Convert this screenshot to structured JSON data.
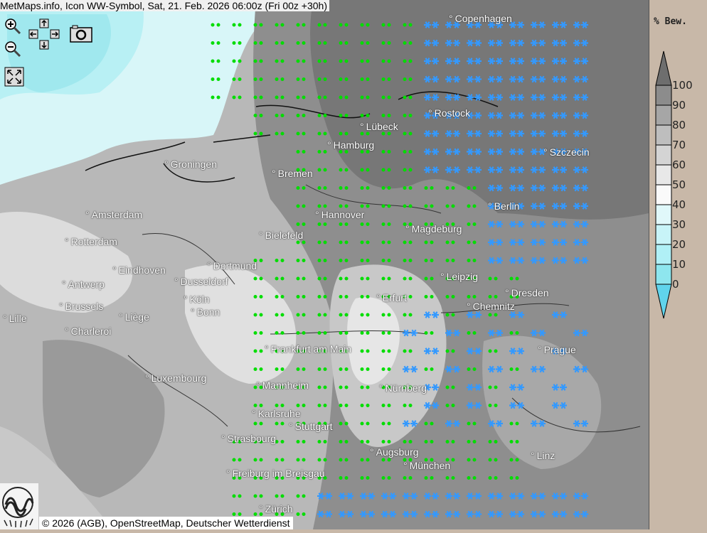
{
  "title": "MetMaps.info, Icon WW-Symbol, Sat, 21. Feb. 2026 06:00z (Fri 00z +30h)",
  "toolbar": {
    "icons": [
      "zoom-in-icon",
      "zoom-out-icon",
      "pan-arrows-icon",
      "camera-icon",
      "fullscreen-icon"
    ]
  },
  "legend": {
    "title": "% Bew.",
    "ticks": [
      "100",
      "90",
      "80",
      "70",
      "60",
      "50",
      "40",
      "30",
      "20",
      "10",
      "0"
    ],
    "colors": [
      "#6e6e6e",
      "#8c8c8c",
      "#a6a6a6",
      "#bebebe",
      "#d4d4d4",
      "#e8e8e8",
      "#fafafa",
      "#e0f8fa",
      "#c8f4f8",
      "#b0f0f6",
      "#8ee6ee",
      "#60d4ec"
    ]
  },
  "symbol_colors": {
    "drizzle": "#00dd00",
    "snow": "#3399ff"
  },
  "cities": [
    "Copenhagen",
    "Rostock",
    "Lübeck",
    "Hamburg",
    "Szczecin",
    "Groningen",
    "Bremen",
    "Berlin",
    "Amsterdam",
    "Hannover",
    "Magdeburg",
    "Bielefeld",
    "Rotterdam",
    "Eindhoven",
    "Dortmund",
    "Leipzig",
    "Antwerp",
    "Dusseldorf",
    "Erfurt",
    "Dresden",
    "Köln",
    "Brussels",
    "Chemnitz",
    "Lille",
    "Liège",
    "Bonn",
    "Charleroi",
    "Frankfurt am Main",
    "Prague",
    "Luxembourg",
    "Mannheim",
    "Nürnberg",
    "Karlsruhe",
    "Stuttgart",
    "Strasbourg",
    "Augsburg",
    "Linz",
    "München",
    "Freiburg im Breisgau",
    "Zürich"
  ],
  "attribution": "© 2026 (AGB), OpenStreetMap, Deutscher Wetterdienst",
  "logo_text": "METMAPS"
}
